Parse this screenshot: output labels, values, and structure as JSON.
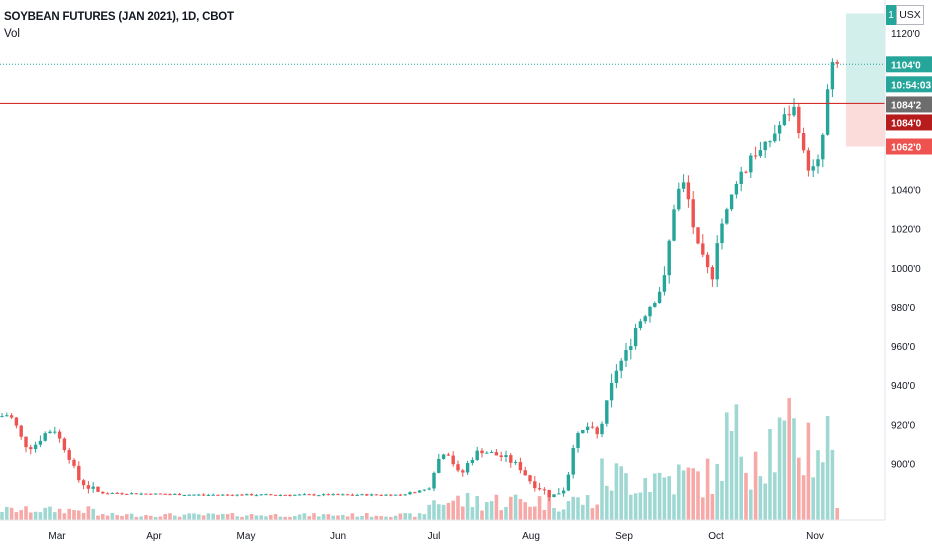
{
  "header": {
    "title": "SOYBEAN FUTURES (JAN 2021), 1D, CBOT",
    "volume_label": "Vol",
    "currency": "USX",
    "currency_prefix": "1"
  },
  "colors": {
    "up": "#26a69a",
    "down": "#ef5350",
    "vol_up": "#9fd8d2",
    "vol_down": "#f7a9a7",
    "last_price": "#26a69a",
    "alert_line": "#d32f2f",
    "prev_close_bg": "#6d6d6d",
    "alert_bg": "#b71c1c",
    "stop_bg": "#ef5350",
    "target_zone": "#d2efec",
    "stop_zone": "#fcdcdb"
  },
  "price_tags": {
    "last": "1104'0",
    "countdown": "10:54:03",
    "prev": "1084'2",
    "alert": "1084'0",
    "stop": "1062'0"
  },
  "chart_data": {
    "type": "candlestick",
    "title": "SOYBEAN FUTURES (JAN 2021), 1D, CBOT",
    "y_ticks": [
      "1120'0",
      "1104'0",
      "1084'2",
      "1084'0",
      "1062'0",
      "1040'0",
      "1020'0",
      "1000'0",
      "980'0",
      "960'0",
      "940'0",
      "920'0",
      "900'0"
    ],
    "x_ticks": [
      "Mar",
      "Apr",
      "May",
      "Jun",
      "Jul",
      "Aug",
      "Sep",
      "Oct",
      "Nov"
    ],
    "ylim": [
      882,
      1131
    ],
    "last_price": 1104,
    "alert_level": 1084,
    "target_level": 1130,
    "stop_level": 1062,
    "grid": false
  }
}
